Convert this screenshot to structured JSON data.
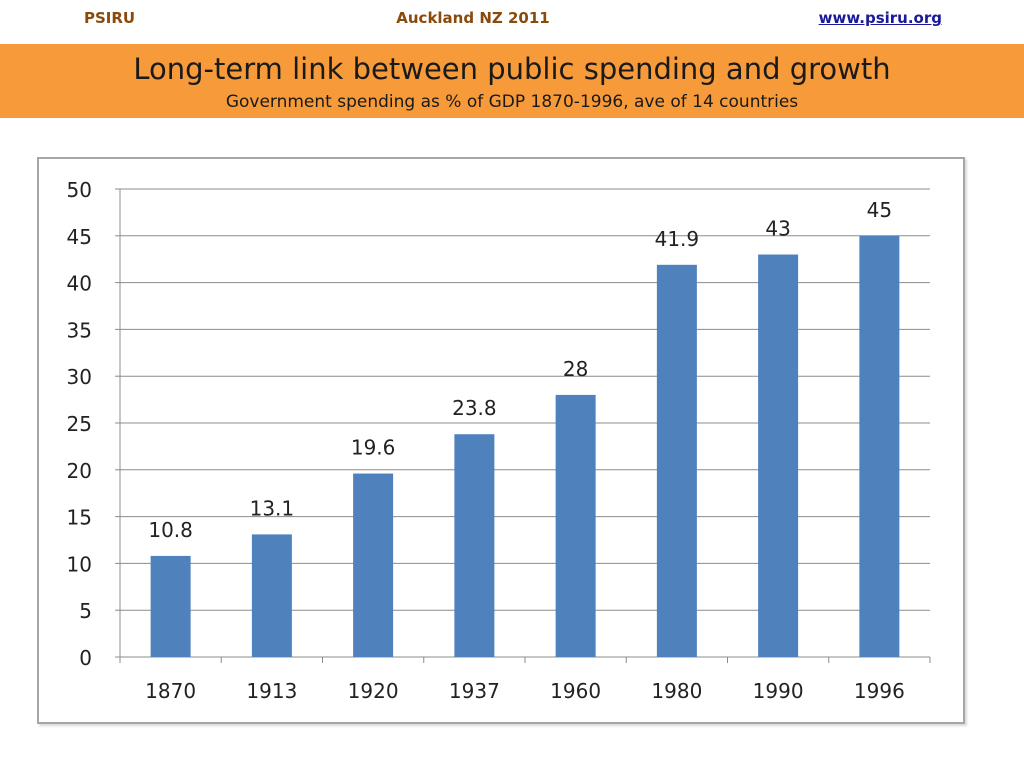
{
  "header": {
    "left": "PSIRU",
    "center": "Auckland NZ 2011",
    "right": "www.psiru.org"
  },
  "banner": {
    "title": "Long-term link between public spending and growth",
    "subtitle": "Government spending as % of GDP 1870-1996, ave of 14 countries"
  },
  "colors": {
    "banner": "#f79a3a",
    "bar": "#4f81bd",
    "header_text": "#8a4a0c",
    "link": "#1a1a9a"
  },
  "chart_data": {
    "type": "bar",
    "categories": [
      "1870",
      "1913",
      "1920",
      "1937",
      "1960",
      "1980",
      "1990",
      "1996"
    ],
    "values": [
      10.8,
      13.1,
      19.6,
      23.8,
      28,
      41.9,
      43,
      45
    ],
    "data_labels": [
      "10.8",
      "13.1",
      "19.6",
      "23.8",
      "28",
      "41.9",
      "43",
      "45"
    ],
    "ylim": [
      0,
      50
    ],
    "yticks": [
      0,
      5,
      10,
      15,
      20,
      25,
      30,
      35,
      40,
      45,
      50
    ],
    "grid": true,
    "legend": "none",
    "bar_color": "#4f81bd"
  }
}
